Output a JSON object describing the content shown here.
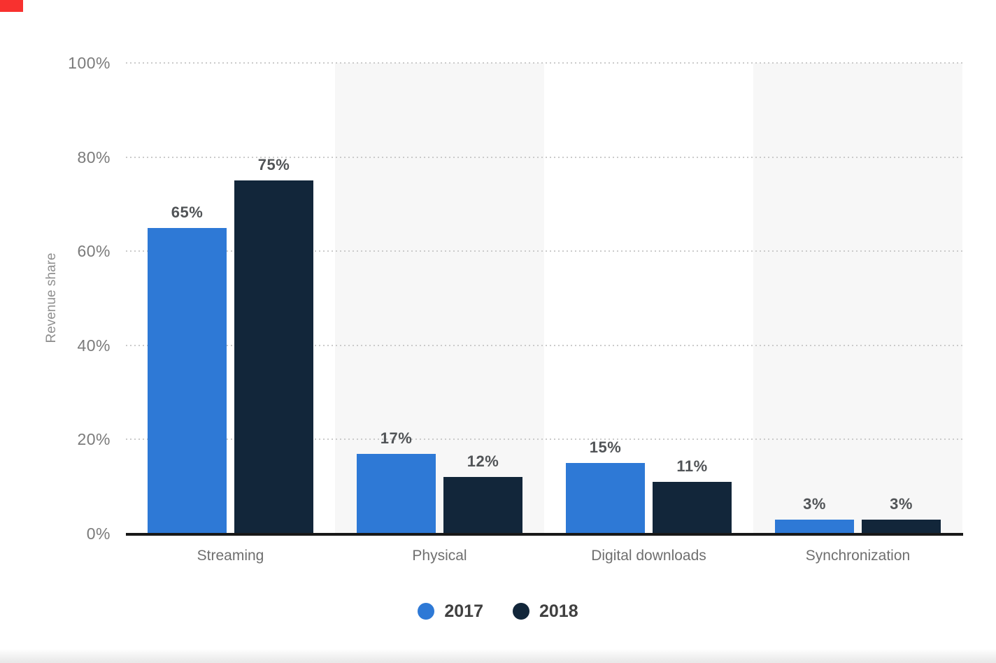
{
  "page": {
    "background": "#ffffff",
    "top_left_marker_color": "#f8312f",
    "bottom_fade_color": "#e9e9e9"
  },
  "chart_data": {
    "type": "bar",
    "categories": [
      "Streaming",
      "Physical",
      "Digital downloads",
      "Synchronization"
    ],
    "series": [
      {
        "name": "2017",
        "color": "#2e79d6",
        "values": [
          65,
          17,
          15,
          3
        ]
      },
      {
        "name": "2018",
        "color": "#12263a",
        "values": [
          75,
          12,
          11,
          3
        ]
      }
    ],
    "value_suffix": "%",
    "ylabel": "Revenue share",
    "ylim": [
      0,
      100
    ],
    "yticks": [
      0,
      20,
      40,
      60,
      80,
      100
    ],
    "ytick_labels": [
      "0%",
      "20%",
      "40%",
      "60%",
      "80%",
      "100%"
    ],
    "grid": "horizontal dotted",
    "grid_color": "#cbcbcb",
    "plot_band_columns": [
      1,
      3
    ],
    "plot_band_color": "#f7f7f7",
    "axis_line_color": "#191919",
    "tick_label_color": "#7b7b7b",
    "category_label_color": "#6f6f6f",
    "value_label_color": "#515457",
    "ylabel_color": "#8f8f8f",
    "legend_position": "bottom",
    "legend_text_color": "#404040"
  }
}
